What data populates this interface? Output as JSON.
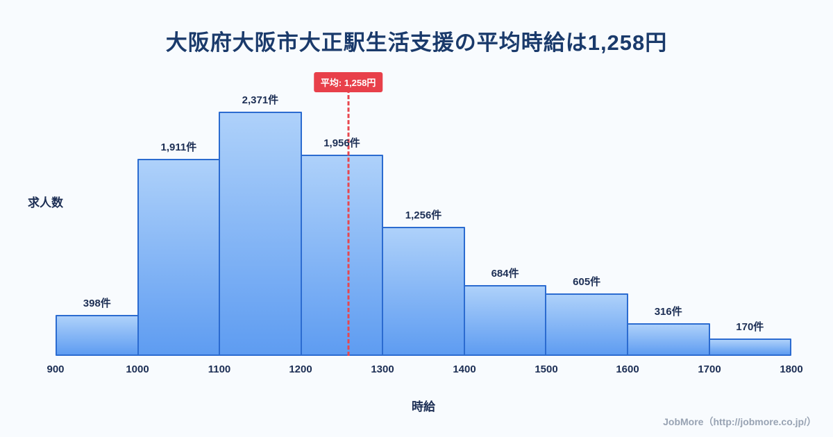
{
  "title": "大阪府大阪市大正駅生活支援の平均時給は1,258円",
  "ylabel": "求人数",
  "xlabel": "時給",
  "footer": "JobMore（http://jobmore.co.jp/）",
  "colors": {
    "background": "#f8fbfe",
    "title": "#1a3a6b",
    "bar_fill_top": "#aed1fa",
    "bar_fill_bottom": "#5e9cf1",
    "bar_border": "#2b6bd0",
    "label": "#1c2e54",
    "average_line": "#e8474f",
    "badge_bg": "#e8404a",
    "badge_text": "#ffffff",
    "footer_text": "#98a3b3"
  },
  "chart_data": {
    "type": "bar",
    "subtype": "histogram",
    "title": "大阪府大阪市大正駅生活支援の平均時給は1,258円",
    "xlabel": "時給",
    "ylabel": "求人数",
    "bin_edges": [
      900,
      1000,
      1100,
      1200,
      1300,
      1400,
      1500,
      1600,
      1700,
      1800
    ],
    "values": [
      398,
      1911,
      2371,
      1956,
      1256,
      684,
      605,
      316,
      170
    ],
    "value_labels": [
      "398件",
      "1,911件",
      "2,371件",
      "1,956件",
      "1,256件",
      "684件",
      "605件",
      "316件",
      "170件"
    ],
    "average": 1258,
    "average_label": "平均: 1,258円",
    "x_range": [
      900,
      1800
    ],
    "ylim": [
      0,
      2371
    ],
    "grid": false,
    "legend": "none"
  }
}
